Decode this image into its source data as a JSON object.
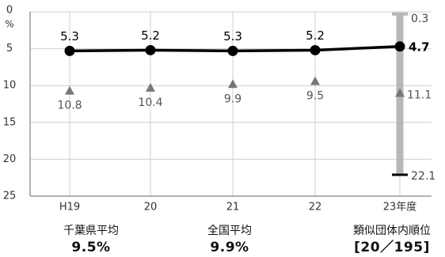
{
  "chart_data": {
    "type": "line",
    "y_axis_unit": "%",
    "ylim": [
      0,
      25
    ],
    "y_reversed": true,
    "y_ticks": [
      0,
      5,
      10,
      15,
      20,
      25
    ],
    "grid": true,
    "categories": [
      "H19",
      "20",
      "21",
      "22",
      "23年度"
    ],
    "series": [
      {
        "values": [
          5.3,
          5.2,
          5.3,
          5.2,
          4.7
        ],
        "labels": [
          "5.3",
          "5.2",
          "5.3",
          "5.2",
          "4.7"
        ],
        "color": "#000000"
      },
      {
        "values": [
          10.8,
          10.4,
          9.9,
          9.5,
          11.1
        ],
        "labels": [
          "10.8",
          "10.4",
          "9.9",
          "9.5",
          "11.1"
        ],
        "color": "#777777"
      }
    ],
    "range_bar": {
      "category": "23年度",
      "min": 0.3,
      "max": 22.1,
      "min_label": "0.3",
      "max_label": "22.1",
      "color": "#b8b8b8"
    }
  },
  "footer": {
    "prefecture_label": "千葉県平均",
    "prefecture_value": "9.5%",
    "national_label": "全国平均",
    "national_value": "9.9%",
    "rank_label": "類似団体内順位",
    "rank_value": "[20／195]"
  }
}
